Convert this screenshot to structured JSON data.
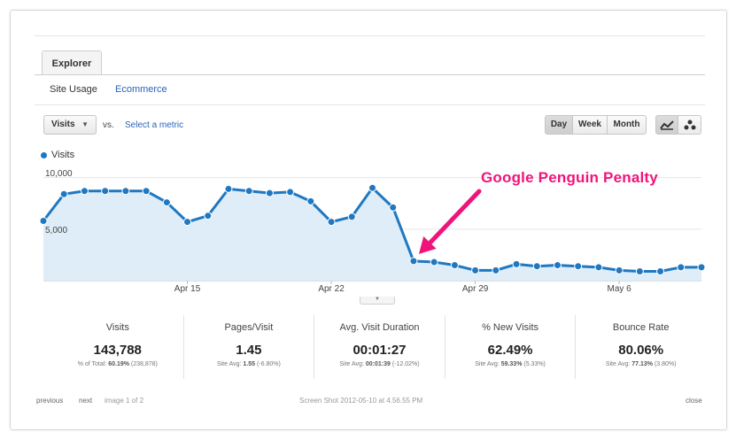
{
  "explorer_tab": "Explorer",
  "subtabs": {
    "site_usage": "Site Usage",
    "ecommerce": "Ecommerce"
  },
  "controls": {
    "metric": "Visits",
    "vs": "vs.",
    "select_metric": "Select a metric",
    "period_buttons": [
      "Day",
      "Week",
      "Month"
    ],
    "selected_period": "Day",
    "view_icons": [
      "line-chart-icon",
      "motion-chart-icon"
    ]
  },
  "annotation": "Google Penguin Penalty",
  "chart_data": {
    "type": "area",
    "series": [
      {
        "name": "Visits",
        "color": "#1f78c1",
        "values": [
          5800,
          8400,
          8700,
          8700,
          8700,
          8700,
          7600,
          5700,
          6300,
          8900,
          8700,
          8500,
          8600,
          7700,
          5700,
          6200,
          9000,
          7100,
          1900,
          1800,
          1500,
          1000,
          1000,
          1600,
          1400,
          1500,
          1400,
          1300,
          1000,
          900,
          900,
          1300,
          1300
        ]
      }
    ],
    "y_ticks": [
      "10,000",
      "5,000"
    ],
    "y_tick_values": [
      10000,
      5000
    ],
    "ylim": [
      0,
      11000
    ],
    "x_ticks": [
      "Apr 15",
      "Apr 22",
      "Apr 29",
      "May 6"
    ],
    "x_tick_indices": [
      7,
      14,
      21,
      28
    ],
    "grid": true,
    "legend": "top-left"
  },
  "stats": [
    {
      "label": "Visits",
      "value": "143,788",
      "sub_prefix": "% of Total: ",
      "sub_bold": "60.19%",
      "sub_suffix": " (238,878)"
    },
    {
      "label": "Pages/Visit",
      "value": "1.45",
      "sub_prefix": "Site Avg: ",
      "sub_bold": "1.55",
      "sub_suffix": " (-6.80%)"
    },
    {
      "label": "Avg. Visit Duration",
      "value": "00:01:27",
      "sub_prefix": "Site Avg: ",
      "sub_bold": "00:01:39",
      "sub_suffix": " (-12.02%)"
    },
    {
      "label": "% New Visits",
      "value": "62.49%",
      "sub_prefix": "Site Avg: ",
      "sub_bold": "59.33%",
      "sub_suffix": " (5.33%)"
    },
    {
      "label": "Bounce Rate",
      "value": "80.06%",
      "sub_prefix": "Site Avg: ",
      "sub_bold": "77.13%",
      "sub_suffix": " (3.80%)"
    }
  ],
  "footer": {
    "previous": "previous",
    "next": "next",
    "image_count": "image 1 of 2",
    "caption": "Screen Shot 2012-05-10 at 4.56.55 PM",
    "close": "close"
  }
}
